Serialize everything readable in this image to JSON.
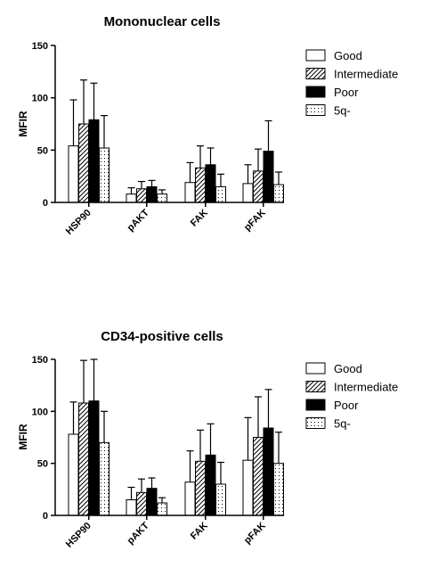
{
  "chart_data": [
    {
      "type": "bar",
      "title": "Mononuclear cells",
      "ylabel": "MFIR",
      "xlabel": "",
      "ylim": [
        0,
        150
      ],
      "yticks": [
        0,
        50,
        100,
        150
      ],
      "categories": [
        "HSP90",
        "pAKT",
        "FAK",
        "pFAK"
      ],
      "legend_position": "top-right",
      "series": [
        {
          "name": "Good",
          "pattern": "white",
          "values": [
            54,
            8,
            19,
            18
          ],
          "errors": [
            44,
            6,
            19,
            18
          ]
        },
        {
          "name": "Intermediate",
          "pattern": "hatch",
          "values": [
            75,
            13,
            33,
            30
          ],
          "errors": [
            42,
            7,
            21,
            21
          ]
        },
        {
          "name": "Poor",
          "pattern": "black",
          "values": [
            79,
            15,
            36,
            49
          ],
          "errors": [
            35,
            6,
            16,
            29
          ]
        },
        {
          "name": "5q-",
          "pattern": "dots",
          "values": [
            52,
            8,
            15,
            17
          ],
          "errors": [
            31,
            4,
            12,
            12
          ]
        }
      ]
    },
    {
      "type": "bar",
      "title": "CD34-positive cells",
      "ylabel": "MFIR",
      "xlabel": "",
      "ylim": [
        0,
        150
      ],
      "yticks": [
        0,
        50,
        100,
        150
      ],
      "categories": [
        "HSP90",
        "pAKT",
        "FAK",
        "pFAK"
      ],
      "legend_position": "top-right",
      "series": [
        {
          "name": "Good",
          "pattern": "white",
          "values": [
            78,
            15,
            32,
            53
          ],
          "errors": [
            31,
            12,
            30,
            41
          ]
        },
        {
          "name": "Intermediate",
          "pattern": "hatch",
          "values": [
            108,
            22,
            52,
            75
          ],
          "errors": [
            41,
            13,
            30,
            39
          ]
        },
        {
          "name": "Poor",
          "pattern": "black",
          "values": [
            110,
            26,
            58,
            84
          ],
          "errors": [
            40,
            10,
            30,
            37
          ]
        },
        {
          "name": "5q-",
          "pattern": "dots",
          "values": [
            70,
            12,
            30,
            50
          ],
          "errors": [
            30,
            5,
            21,
            30
          ]
        }
      ]
    }
  ]
}
